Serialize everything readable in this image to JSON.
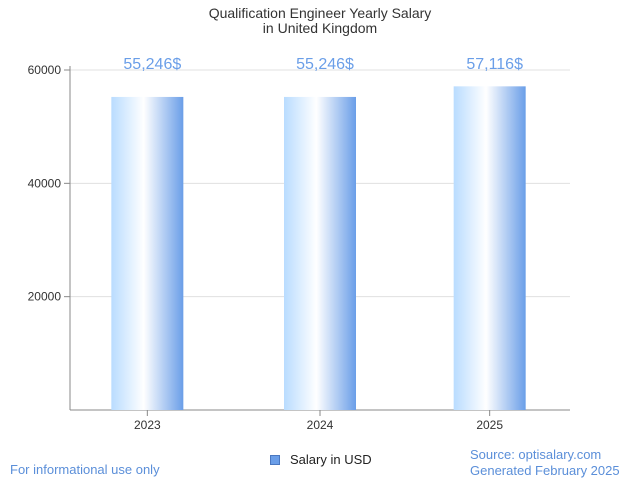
{
  "chart_data": {
    "type": "bar",
    "title": [
      "Qualification Engineer Yearly Salary",
      "in United Kingdom"
    ],
    "categories": [
      "2023",
      "2024",
      "2025"
    ],
    "values": [
      55246,
      55246,
      57116
    ],
    "data_labels": [
      "55,246$",
      "55,246$",
      "57,116$"
    ],
    "ylim": [
      0,
      60000
    ],
    "yticks": [
      20000,
      40000,
      60000
    ],
    "ytick_labels": [
      "20000",
      "40000",
      "60000"
    ],
    "grid": true,
    "legend": {
      "label": "Salary in USD",
      "position": "bottom-center"
    },
    "colors": {
      "bar_dark": "#6a9ee8",
      "bar_light": "#ffffff",
      "bar_mid": "#b9dcff",
      "label": "#6a9ee8",
      "grid": "#e0e0e0",
      "axis": "#888888"
    }
  },
  "footer": {
    "disclaimer": "For informational use only",
    "source": "Source: optisalary.com",
    "generated": "Generated February 2025"
  }
}
